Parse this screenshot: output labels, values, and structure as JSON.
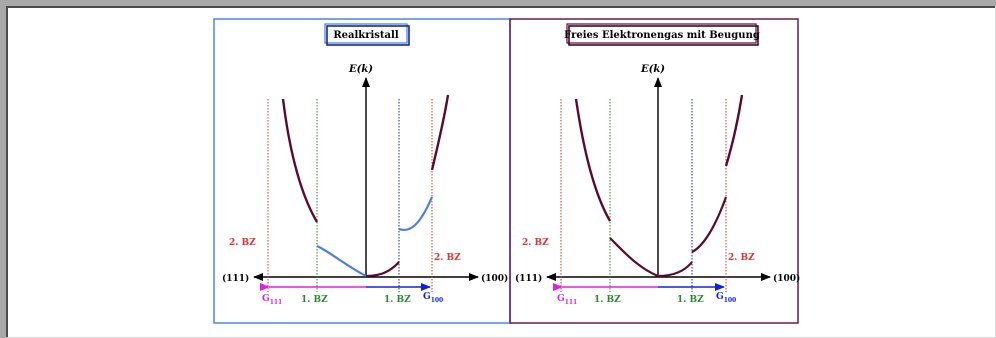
{
  "panels": [
    {
      "title": "Realkristall",
      "axis_y_label": "E(k)",
      "left_direction": "(111)",
      "right_direction": "(100)",
      "bz2_left": "2. BZ",
      "bz2_right": "2. BZ",
      "bz1_left": "1. BZ",
      "bz1_right": "1. BZ",
      "g_left": "G",
      "g_left_sub": "111",
      "g_right": "G",
      "g_right_sub": "100"
    },
    {
      "title": "Freies Elektronengas mit Beugung",
      "axis_y_label": "E(k)",
      "left_direction": "(111)",
      "right_direction": "(100)",
      "bz2_left": "2. BZ",
      "bz2_right": "2. BZ",
      "bz1_left": "1. BZ",
      "bz1_right": "1. BZ",
      "g_left": "G",
      "g_left_sub": "111",
      "g_right": "G",
      "g_right_sub": "100"
    }
  ],
  "colors": {
    "panel1_border": "#4a86e8",
    "panel2_border": "#6b1a4b",
    "curve_dark": "#5a0a2e",
    "curve_blue": "#4a7ee0",
    "bz2": "#e03030",
    "bz1": "#2a8a2a",
    "g111": "#e020e0",
    "g100": "#1020e0"
  }
}
